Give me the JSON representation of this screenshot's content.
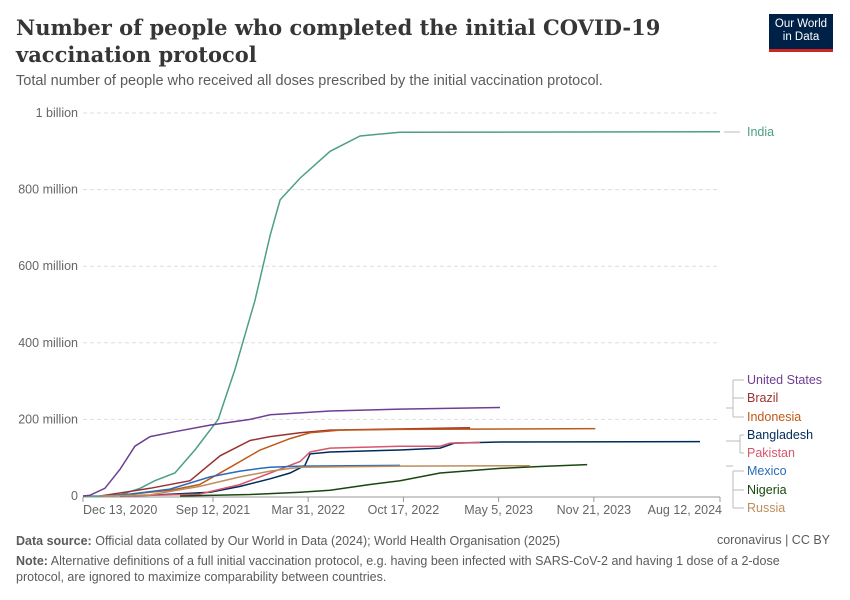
{
  "header": {
    "title": "Number of people who completed the initial COVID-19 vaccination protocol",
    "subtitle": "Total number of people who received all doses prescribed by the initial vaccination protocol.",
    "logo": "Our World in Data"
  },
  "footer": {
    "source_label": "Data source:",
    "source": "Official data collated by Our World in Data (2024); World Health Organisation (2025)",
    "license": "coronavirus | CC BY",
    "note_label": "Note:",
    "note": "Alternative definitions of a full initial vaccination protocol, e.g. having been infected with SARS-CoV-2 and having 1 dose of a 2-dose protocol, are ignored to maximize comparability between countries."
  },
  "chart_data": {
    "type": "line",
    "title": "Number of people who completed the initial COVID-19 vaccination protocol",
    "xlim": [
      "2020-12-13",
      "2024-08-12"
    ],
    "ylim": [
      0,
      1000000000
    ],
    "x_ticks": [
      {
        "date": "2020-12-13",
        "label": "Dec 13, 2020"
      },
      {
        "date": "2021-09-12",
        "label": "Sep 12, 2021"
      },
      {
        "date": "2022-03-31",
        "label": "Mar 31, 2022"
      },
      {
        "date": "2022-10-17",
        "label": "Oct 17, 2022"
      },
      {
        "date": "2023-05-05",
        "label": "May 5, 2023"
      },
      {
        "date": "2023-11-21",
        "label": "Nov 21, 2023"
      },
      {
        "date": "2024-08-12",
        "label": "Aug 12, 2024"
      }
    ],
    "y_ticks": [
      {
        "value": 0,
        "label": "0"
      },
      {
        "value": 200000000,
        "label": "200 million"
      },
      {
        "value": 400000000,
        "label": "400 million"
      },
      {
        "value": 600000000,
        "label": "600 million"
      },
      {
        "value": 800000000,
        "label": "800 million"
      },
      {
        "value": 1000000000,
        "label": "1 billion"
      }
    ],
    "grid": "horizontal dashed",
    "legend": "right, line-end labels",
    "series": [
      {
        "name": "India",
        "color": "#4c9f87",
        "points": [
          [
            "2020-12-13",
            0
          ],
          [
            "2021-01-16",
            0
          ],
          [
            "2021-03-01",
            3000000
          ],
          [
            "2021-04-12",
            20000000
          ],
          [
            "2021-05-13",
            40000000
          ],
          [
            "2021-06-24",
            60000000
          ],
          [
            "2021-08-05",
            120000000
          ],
          [
            "2021-09-23",
            200000000
          ],
          [
            "2021-10-28",
            330000000
          ],
          [
            "2021-12-09",
            510000000
          ],
          [
            "2022-01-10",
            680000000
          ],
          [
            "2022-01-31",
            773000000
          ],
          [
            "2022-03-14",
            830000000
          ],
          [
            "2022-05-16",
            900000000
          ],
          [
            "2022-07-18",
            940000000
          ],
          [
            "2022-10-10",
            950000000
          ],
          [
            "2024-08-12",
            951000000
          ]
        ]
      },
      {
        "name": "United States",
        "color": "#6d3e91",
        "points": [
          [
            "2020-12-13",
            0
          ],
          [
            "2020-12-28",
            2000000
          ],
          [
            "2021-01-28",
            20000000
          ],
          [
            "2021-03-01",
            70000000
          ],
          [
            "2021-04-01",
            130000000
          ],
          [
            "2021-05-03",
            155000000
          ],
          [
            "2021-06-24",
            168000000
          ],
          [
            "2021-09-06",
            185000000
          ],
          [
            "2021-11-29",
            200000000
          ],
          [
            "2022-01-10",
            212000000
          ],
          [
            "2022-05-16",
            222000000
          ],
          [
            "2022-10-10",
            227000000
          ],
          [
            "2023-05-08",
            231000000
          ]
        ]
      },
      {
        "name": "Brazil",
        "color": "#9a3232",
        "points": [
          [
            "2021-01-18",
            0
          ],
          [
            "2021-05-03",
            20000000
          ],
          [
            "2021-07-26",
            40000000
          ],
          [
            "2021-09-27",
            105000000
          ],
          [
            "2021-11-29",
            145000000
          ],
          [
            "2022-01-10",
            155000000
          ],
          [
            "2022-03-14",
            165000000
          ],
          [
            "2022-05-16",
            172000000
          ],
          [
            "2023-03-06",
            178000000
          ]
        ]
      },
      {
        "name": "Indonesia",
        "color": "#c05917",
        "points": [
          [
            "2021-01-18",
            0
          ],
          [
            "2021-03-01",
            2000000
          ],
          [
            "2021-06-14",
            15000000
          ],
          [
            "2021-08-15",
            30000000
          ],
          [
            "2021-10-18",
            75000000
          ],
          [
            "2021-12-20",
            120000000
          ],
          [
            "2022-02-21",
            150000000
          ],
          [
            "2022-04-04",
            165000000
          ],
          [
            "2022-06-06",
            172000000
          ],
          [
            "2022-10-10",
            174000000
          ],
          [
            "2023-11-24",
            176000000
          ]
        ]
      },
      {
        "name": "Bangladesh",
        "color": "#00295b",
        "points": [
          [
            "2021-03-01",
            0
          ],
          [
            "2021-05-03",
            2000000
          ],
          [
            "2021-09-06",
            10000000
          ],
          [
            "2021-11-08",
            25000000
          ],
          [
            "2022-01-10",
            45000000
          ],
          [
            "2022-02-21",
            60000000
          ],
          [
            "2022-03-24",
            80000000
          ],
          [
            "2022-04-04",
            110000000
          ],
          [
            "2022-05-16",
            115000000
          ],
          [
            "2022-10-10",
            120000000
          ],
          [
            "2023-01-02",
            125000000
          ],
          [
            "2023-02-02",
            138000000
          ],
          [
            "2023-05-08",
            141000000
          ],
          [
            "2024-07-01",
            142000000
          ]
        ]
      },
      {
        "name": "Pakistan",
        "color": "#d6566b",
        "points": [
          [
            "2021-03-01",
            0
          ],
          [
            "2021-08-15",
            5000000
          ],
          [
            "2021-11-08",
            30000000
          ],
          [
            "2022-01-10",
            60000000
          ],
          [
            "2022-03-14",
            90000000
          ],
          [
            "2022-04-04",
            115000000
          ],
          [
            "2022-05-16",
            125000000
          ],
          [
            "2022-10-10",
            130000000
          ],
          [
            "2023-01-02",
            130000000
          ],
          [
            "2023-01-23",
            138000000
          ],
          [
            "2023-03-27",
            140000000
          ]
        ]
      },
      {
        "name": "Mexico",
        "color": "#286bbb",
        "points": [
          [
            "2021-01-18",
            0
          ],
          [
            "2021-03-22",
            5000000
          ],
          [
            "2021-06-14",
            18000000
          ],
          [
            "2021-09-06",
            50000000
          ],
          [
            "2021-11-08",
            65000000
          ],
          [
            "2021-12-20",
            72000000
          ],
          [
            "2022-01-10",
            75000000
          ],
          [
            "2022-03-14",
            78000000
          ],
          [
            "2022-10-10",
            80000000
          ]
        ]
      },
      {
        "name": "Nigeria",
        "color": "#18470f",
        "points": [
          [
            "2021-07-05",
            0
          ],
          [
            "2021-11-29",
            4000000
          ],
          [
            "2022-03-14",
            10000000
          ],
          [
            "2022-05-16",
            15000000
          ],
          [
            "2022-08-08",
            30000000
          ],
          [
            "2022-10-10",
            40000000
          ],
          [
            "2023-01-02",
            60000000
          ],
          [
            "2023-05-08",
            72000000
          ],
          [
            "2023-07-31",
            77000000
          ],
          [
            "2023-11-07",
            82000000
          ]
        ]
      },
      {
        "name": "Russia",
        "color": "#bc8e5a",
        "points": [
          [
            "2021-01-18",
            0
          ],
          [
            "2021-05-03",
            3000000
          ],
          [
            "2021-08-15",
            25000000
          ],
          [
            "2021-11-08",
            50000000
          ],
          [
            "2022-01-10",
            65000000
          ],
          [
            "2022-03-14",
            75000000
          ],
          [
            "2022-10-10",
            78000000
          ],
          [
            "2023-07-10",
            79000000
          ]
        ]
      }
    ]
  }
}
